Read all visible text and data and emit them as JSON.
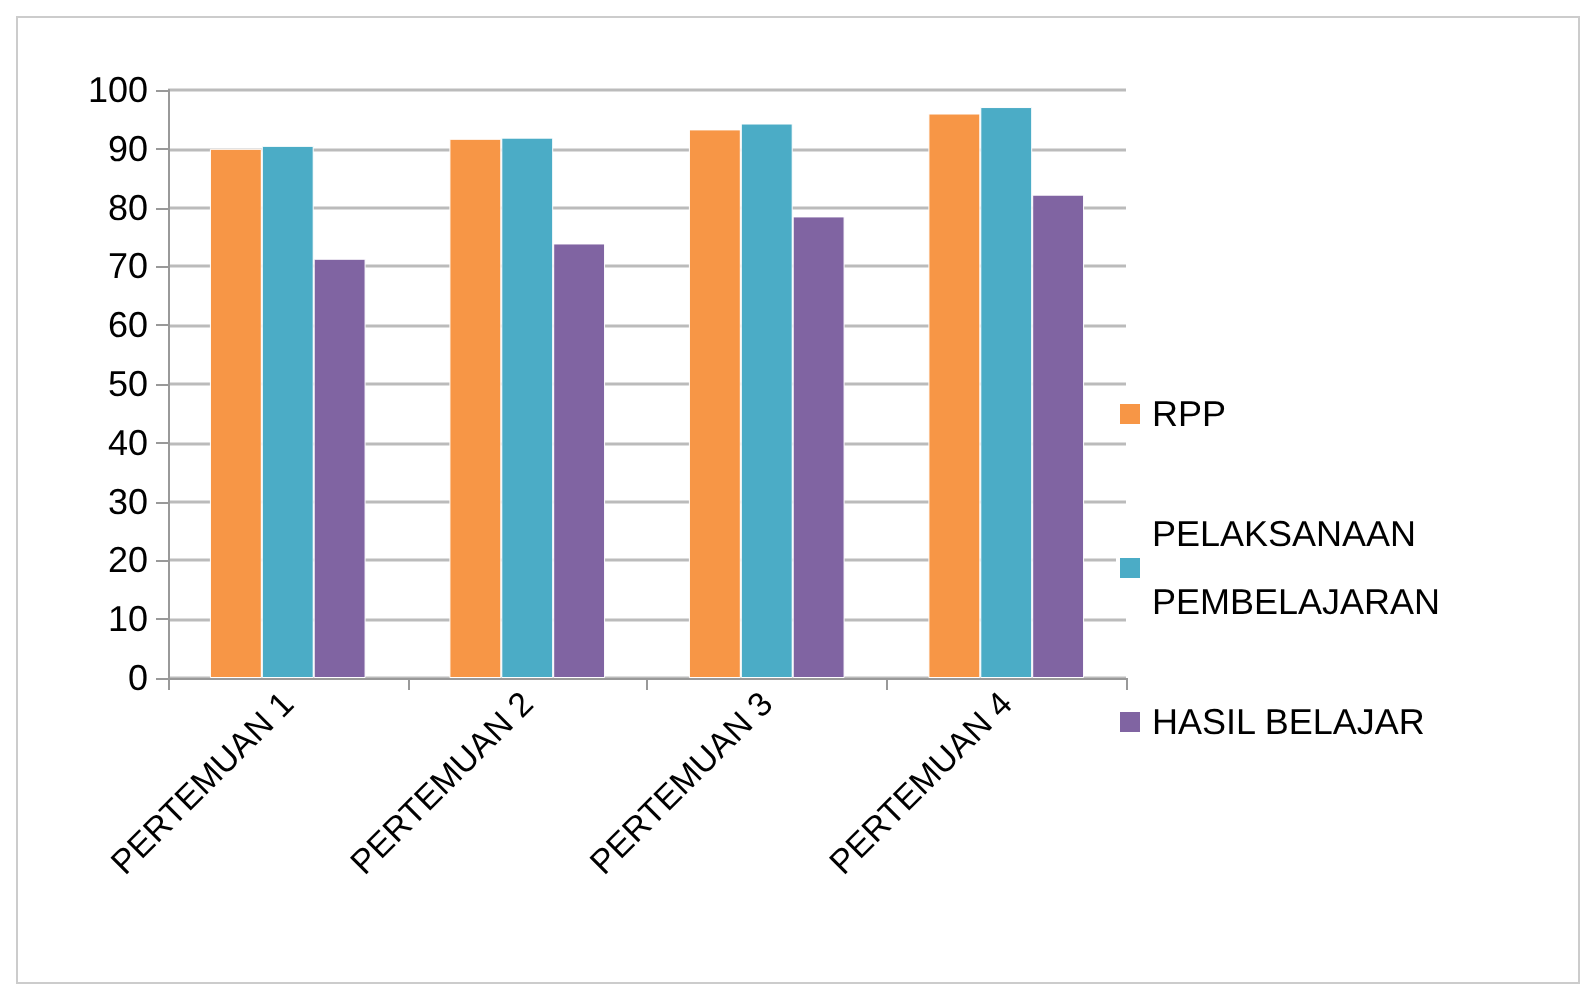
{
  "chart_data": {
    "type": "bar",
    "categories": [
      "PERTEMUAN 1",
      "PERTEMUAN 2",
      "PERTEMUAN 3",
      "PERTEMUAN 4"
    ],
    "series": [
      {
        "name": "RPP",
        "color": "#f79646",
        "values": [
          90,
          91.7,
          93.3,
          96
        ]
      },
      {
        "name": "PELAKSANAAN PEMBELAJARAN",
        "color": "#4bacc6",
        "values": [
          90.5,
          91.9,
          94.3,
          97.1
        ]
      },
      {
        "name": "HASIL BELAJAR",
        "color": "#8064a2",
        "values": [
          71.3,
          73.9,
          78.5,
          82.2
        ]
      }
    ],
    "ylim": [
      0,
      100
    ],
    "yticks": [
      0,
      10,
      20,
      30,
      40,
      50,
      60,
      70,
      80,
      90,
      100
    ],
    "grid": "y",
    "legend": "right"
  }
}
